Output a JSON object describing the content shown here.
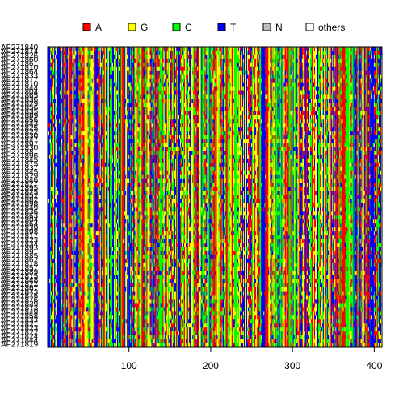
{
  "chart_data": {
    "type": "heatmap",
    "title": "",
    "xlabel": "",
    "ylabel": "",
    "xlim": [
      1,
      409
    ],
    "x_ticks": [
      100,
      200,
      300,
      400
    ],
    "x_tick_labels": [
      "100",
      "200",
      "300",
      "400"
    ],
    "legend": {
      "placement": "top",
      "items": [
        {
          "label": "A",
          "color": "#ff0000"
        },
        {
          "label": "G",
          "color": "#ffff00"
        },
        {
          "label": "C",
          "color": "#00ff00"
        },
        {
          "label": "T",
          "color": "#0000ff"
        },
        {
          "label": "N",
          "color": "#bebebe"
        },
        {
          "label": "others",
          "color": "#ffffff"
        }
      ]
    },
    "rows": [
      "AF271840",
      "AF271874",
      "AF271826",
      "AF271860",
      "AF271861",
      "AF271810",
      "AF271864",
      "AF271833",
      "AF271817",
      "AF271810",
      "AF271844",
      "AF271804",
      "AF271865",
      "AF271836",
      "AF271829",
      "AF271856",
      "AF271835",
      "AF271889",
      "AF271856",
      "AF271843",
      "AF271825",
      "AF271822",
      "AF271830",
      "AF271847",
      "AF271897",
      "AF271830",
      "AF271881",
      "AF271896",
      "AF271845",
      "AF271875",
      "AF271837",
      "AF271845",
      "AF271829",
      "AF271846",
      "AF271827",
      "AF271895",
      "AF271825",
      "AF271852",
      "AF271882",
      "AF271898",
      "AF271849",
      "AF271836",
      "AF271863",
      "AF271804",
      "AF271864",
      "AF271839",
      "AF271898",
      "AF271817",
      "AF271823",
      "AF271834",
      "AF271893",
      "AF271891",
      "AF271885",
      "AF271862",
      "AF271818",
      "AF271857",
      "AF271889",
      "AF271815",
      "AF271848",
      "AF271822",
      "AF271867",
      "AF271873",
      "AF271876",
      "AF271876",
      "AF271829",
      "AF271873",
      "AF271849",
      "AF271858",
      "AF271833",
      "AF271821",
      "AF271823",
      "AF271822",
      "AF271824",
      "AF271844",
      "AF271819"
    ],
    "grid": false
  }
}
